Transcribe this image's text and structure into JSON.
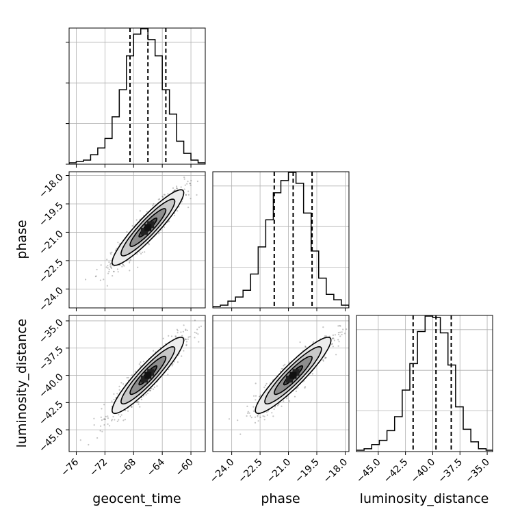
{
  "chart_data": {
    "type": "corner",
    "parameters": [
      {
        "name": "geocent_time",
        "label": "geocent_time",
        "range": [
          -77,
          -58
        ],
        "ticks": [
          -76,
          -72,
          -68,
          -64,
          -60
        ],
        "tick_labels": [
          "−76",
          "−72",
          "−68",
          "−64",
          "−60"
        ],
        "quantiles": [
          -68.5,
          -66.0,
          -63.5
        ],
        "mean": -66.0,
        "sd": 2.5
      },
      {
        "name": "phase",
        "label": "phase",
        "range": [
          -25.0,
          -17.8
        ],
        "ticks": [
          -24.0,
          -22.5,
          -21.0,
          -19.5,
          -18.0
        ],
        "tick_labels": [
          "−24.0",
          "−22.5",
          "−21.0",
          "−19.5",
          "−18.0"
        ],
        "quantiles": [
          -21.75,
          -20.75,
          -19.75
        ],
        "mean": -20.75,
        "sd": 1.0
      },
      {
        "name": "luminosity_distance",
        "label": "luminosity_distance",
        "range": [
          -47.0,
          -34.5
        ],
        "ticks": [
          -45.0,
          -42.5,
          -40.0,
          -37.5,
          -35.0
        ],
        "tick_labels": [
          "−45.0",
          "−42.5",
          "−40.0",
          "−37.5",
          "−35.0"
        ],
        "quantiles": [
          -41.8,
          -39.7,
          -38.3
        ],
        "mean": -40.0,
        "sd": 1.75
      }
    ],
    "histograms": [
      {
        "param": "geocent_time",
        "bin_edges": [
          -77,
          -76,
          -75,
          -74,
          -73,
          -72,
          -71,
          -70,
          -69,
          -68,
          -67,
          -66,
          -65,
          -64,
          -63,
          -62,
          -61,
          -60,
          -59,
          -58
        ],
        "counts": [
          1,
          2,
          3,
          7,
          12,
          19,
          35,
          55,
          80,
          96,
          100,
          92,
          80,
          55,
          37,
          17,
          8,
          3,
          1
        ]
      },
      {
        "param": "phase",
        "bin_edges": [
          -25.0,
          -24.6,
          -24.2,
          -23.8,
          -23.4,
          -23.0,
          -22.6,
          -22.2,
          -21.8,
          -21.4,
          -21.0,
          -20.6,
          -20.2,
          -19.8,
          -19.4,
          -19.0,
          -18.6,
          -18.2,
          -17.8
        ],
        "counts": [
          1,
          2,
          5,
          8,
          13,
          25,
          45,
          65,
          85,
          94,
          100,
          92,
          70,
          42,
          22,
          10,
          6,
          2
        ]
      },
      {
        "param": "luminosity_distance",
        "bin_edges": [
          -47.0,
          -46.3,
          -45.6,
          -44.9,
          -44.2,
          -43.5,
          -42.8,
          -42.1,
          -41.4,
          -40.7,
          -40.0,
          -39.3,
          -38.6,
          -37.9,
          -37.2,
          -36.5,
          -35.8,
          -35.1,
          -34.5
        ],
        "counts": [
          1,
          2,
          5,
          8,
          15,
          25,
          44,
          63,
          86,
          97,
          96,
          85,
          62,
          32,
          16,
          7,
          2,
          1
        ]
      }
    ],
    "correlations": [
      {
        "x": "geocent_time",
        "y": "phase",
        "rho": 0.92
      },
      {
        "x": "geocent_time",
        "y": "luminosity_distance",
        "rho": 0.92
      },
      {
        "x": "phase",
        "y": "luminosity_distance",
        "rho": 0.92
      }
    ],
    "grid": true,
    "samples_shown_as_points": true,
    "contour_levels_sigma": [
      0.5,
      1.0,
      1.5,
      2.0
    ]
  }
}
